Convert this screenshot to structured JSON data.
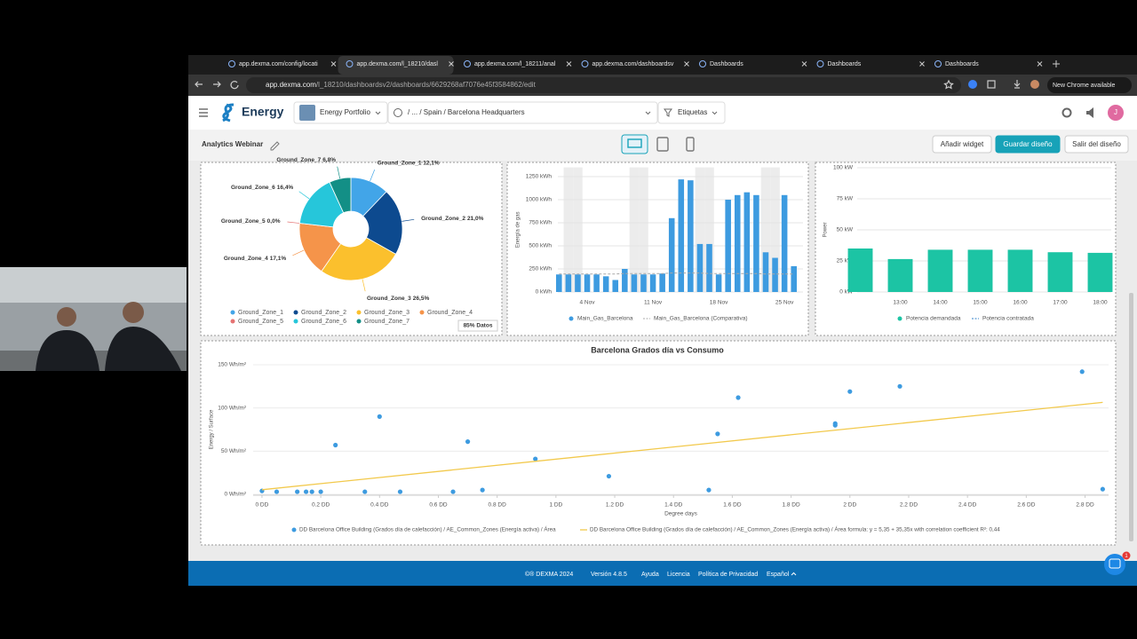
{
  "browser": {
    "tabs": [
      "app.dexma.com/config/locati",
      "app.dexma.com/l_18210/dasl",
      "app.dexma.com/l_18211/anal",
      "app.dexma.com/dashboardsv",
      "Dashboards",
      "Dashboards",
      "Dashboards"
    ],
    "host": "app.dexma.com",
    "path": "/l_18210/dashboardsv2/dashboards/6629268af7076e45f3584862/edit",
    "update": "New Chrome available"
  },
  "app": {
    "brand": "Energy",
    "portfolio": "Energy Portfolio",
    "location": "/ ... / Spain / Barcelona Headquarters",
    "tags": "Etiquetas",
    "avatar": "J"
  },
  "toolbar": {
    "title": "Analytics Webinar",
    "buttons": [
      "Añadir widget",
      "Guardar diseño",
      "Salir del diseño"
    ]
  },
  "chart_data": [
    {
      "type": "pie",
      "categories": [
        "Ground_Zone_1",
        "Ground_Zone_2",
        "Ground_Zone_3",
        "Ground_Zone_4",
        "Ground_Zone_5",
        "Ground_Zone_6",
        "Ground_Zone_7"
      ],
      "values": [
        12.1,
        21.0,
        26.5,
        17.1,
        0.0,
        16.4,
        6.8
      ],
      "value_labels": [
        "12,1%",
        "21,0%",
        "26,5%",
        "17,1%",
        "0,0%",
        "16,4%",
        "6,8%"
      ],
      "colors": [
        "#42a5e8",
        "#0d4a8f",
        "#fbc02d",
        "#f5944a",
        "#e57373",
        "#26c6da",
        "#138f86"
      ],
      "badge": "85% Datos"
    },
    {
      "type": "bar",
      "ylabel": "Energía de gas",
      "categories": [
        null,
        null,
        null,
        "4 Nov",
        null,
        null,
        null,
        null,
        null,
        null,
        "11 Nov",
        null,
        null,
        null,
        null,
        null,
        null,
        "18 Nov",
        null,
        null,
        null,
        null,
        null,
        null,
        "25 Nov",
        null
      ],
      "series": [
        {
          "name": "Main_Gas_Barcelona",
          "type": "bar",
          "color": "#3d9be0",
          "values": [
            190,
            190,
            190,
            190,
            190,
            170,
            130,
            250,
            190,
            190,
            190,
            200,
            800,
            1220,
            1210,
            520,
            520,
            190,
            1000,
            1050,
            1080,
            1050,
            430,
            370,
            1050,
            280
          ]
        },
        {
          "name": "Main_Gas_Barcelona (Comparativa)",
          "type": "line",
          "color": "#a8a8a8",
          "values": [
            195,
            195,
            195,
            195,
            195,
            195,
            195,
            200,
            200,
            200,
            200,
            200,
            205,
            205,
            205,
            205,
            200,
            200,
            200,
            200,
            200,
            200,
            195,
            195,
            195,
            195
          ]
        }
      ],
      "ylim": [
        0,
        1350
      ],
      "yticks": [
        {
          "value": 0,
          "label": "0 kWh"
        },
        {
          "value": 250,
          "label": "250 kWh"
        },
        {
          "value": 500,
          "label": "500 kWh"
        },
        {
          "value": 750,
          "label": "750 kWh"
        },
        {
          "value": 1000,
          "label": "1000 kWh"
        },
        {
          "value": 1250,
          "label": "1250 kWh"
        }
      ],
      "grid": true
    },
    {
      "type": "bar",
      "ylabel": "Power",
      "categories": [
        null,
        "13:00",
        "14:00",
        "15:00",
        "16:00",
        "17:00",
        "18:00"
      ],
      "series": [
        {
          "name": "Potencia demandada",
          "type": "bar",
          "color": "#1cc4a4",
          "values": [
            35,
            26.5,
            34,
            34,
            34,
            32,
            31.5
          ]
        },
        {
          "name": "Potencia contratada",
          "type": "line",
          "color": "#2f7fc8",
          "values": [
            null,
            null,
            null,
            null,
            null,
            null,
            null
          ]
        }
      ],
      "ylim": [
        0,
        100
      ],
      "yticks": [
        {
          "value": 0,
          "label": "0 kW"
        },
        {
          "value": 25,
          "label": "25 kW"
        },
        {
          "value": 50,
          "label": "50 kW"
        },
        {
          "value": 75,
          "label": "75 kW"
        },
        {
          "value": 100,
          "label": "100 kW"
        }
      ],
      "grid": true
    },
    {
      "type": "scatter",
      "title": "Barcelona Grados día vs Consumo",
      "xlabel": "Degree days",
      "ylabel": "Energy / Surface",
      "series": [
        {
          "name": "DD Barcelona Office Building (Grados día de calefacción) / AE_Common_Zones (Energía activa) / Área",
          "type": "scatter",
          "color": "#3d9be0",
          "x": [
            0,
            0.05,
            0.12,
            0.15,
            0.17,
            0.2,
            0.25,
            0.35,
            0.4,
            0.47,
            0.65,
            0.7,
            0.75,
            0.93,
            1.18,
            1.52,
            1.55,
            1.62,
            1.95,
            1.95,
            2.0,
            2.17,
            2.79,
            2.86
          ],
          "values": [
            4,
            3,
            3,
            3,
            3,
            3,
            57,
            3,
            90,
            3,
            3,
            61,
            5,
            41,
            21,
            5,
            70,
            112,
            82,
            80,
            119,
            125,
            142,
            6
          ]
        },
        {
          "name": "DD Barcelona Office Building (Grados día de calefacción) / AE_Common_Zones (Energía activa) / Área formula: y = 5,35 + 35,35x with correlation coefficient R²: 0,44",
          "type": "line",
          "color": "#f2c94c",
          "x": [
            0,
            2.86
          ],
          "values": [
            5.35,
            106.45
          ]
        }
      ],
      "xlim": [
        -0.03,
        2.88
      ],
      "xticks": [
        {
          "value": 0,
          "label": "0 DD"
        },
        {
          "value": 0.2,
          "label": "0.2 DD"
        },
        {
          "value": 0.4,
          "label": "0.4 DD"
        },
        {
          "value": 0.6,
          "label": "0.6 DD"
        },
        {
          "value": 0.8,
          "label": "0.8 DD"
        },
        {
          "value": 1,
          "label": "1 DD"
        },
        {
          "value": 1.2,
          "label": "1.2 DD"
        },
        {
          "value": 1.4,
          "label": "1.4 DD"
        },
        {
          "value": 1.6,
          "label": "1.6 DD"
        },
        {
          "value": 1.8,
          "label": "1.8 DD"
        },
        {
          "value": 2,
          "label": "2 DD"
        },
        {
          "value": 2.2,
          "label": "2.2 DD"
        },
        {
          "value": 2.4,
          "label": "2.4 DD"
        },
        {
          "value": 2.6,
          "label": "2.6 DD"
        },
        {
          "value": 2.8,
          "label": "2.8 DD"
        }
      ],
      "ylim": [
        0,
        150
      ],
      "yticks": [
        {
          "value": 0,
          "label": "0 Wh/m²"
        },
        {
          "value": 50,
          "label": "50 Wh/m²"
        },
        {
          "value": 100,
          "label": "100 Wh/m²"
        },
        {
          "value": 150,
          "label": "150 Wh/m²"
        }
      ],
      "grid": true
    }
  ],
  "footer": {
    "items": [
      "©® DEXMA 2024",
      "Versión 4.8.5",
      "Ayuda",
      "Licencia",
      "Política de Privacidad",
      "Español"
    ],
    "chat_badge": "1"
  }
}
